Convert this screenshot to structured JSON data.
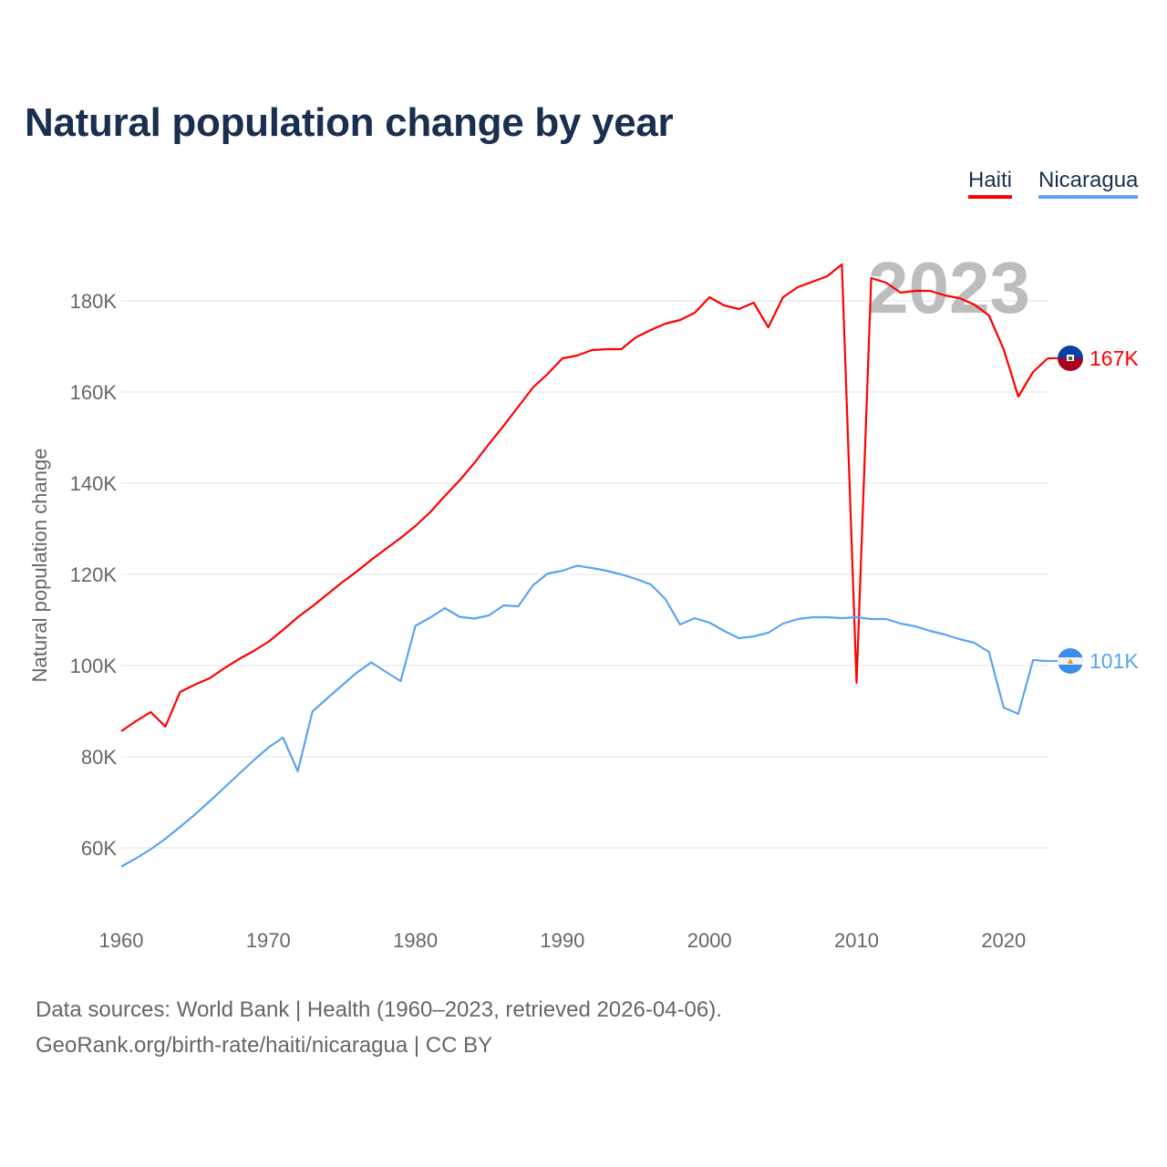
{
  "chart_data": {
    "type": "line",
    "title": "Natural population change by year",
    "xlabel": "",
    "ylabel": "Natural population change",
    "xlim": [
      1960,
      2023
    ],
    "ylim": [
      50000,
      192000
    ],
    "x_ticks": [
      1960,
      1970,
      1980,
      1990,
      2000,
      2010,
      2020
    ],
    "x_tick_labels": [
      "1960",
      "1970",
      "1980",
      "1990",
      "2000",
      "2010",
      "2020"
    ],
    "y_ticks": [
      60000,
      80000,
      100000,
      120000,
      140000,
      160000,
      180000
    ],
    "y_tick_labels": [
      "60K",
      "80K",
      "100K",
      "120K",
      "140K",
      "160K",
      "180K"
    ],
    "grid": true,
    "legend_position": "top-right",
    "watermark_year": "2023",
    "x": [
      1960,
      1961,
      1962,
      1963,
      1964,
      1965,
      1966,
      1967,
      1968,
      1969,
      1970,
      1971,
      1972,
      1973,
      1974,
      1975,
      1976,
      1977,
      1978,
      1979,
      1980,
      1981,
      1982,
      1983,
      1984,
      1985,
      1986,
      1987,
      1988,
      1989,
      1990,
      1991,
      1992,
      1993,
      1994,
      1995,
      1996,
      1997,
      1998,
      1999,
      2000,
      2001,
      2002,
      2003,
      2004,
      2005,
      2006,
      2007,
      2008,
      2009,
      2010,
      2011,
      2012,
      2013,
      2014,
      2015,
      2016,
      2017,
      2018,
      2019,
      2020,
      2021,
      2022,
      2023
    ],
    "series": [
      {
        "name": "Haiti",
        "color": "#ff0000",
        "end_label": "167K",
        "flag": "haiti-flag",
        "values": [
          85600,
          87800,
          89800,
          86600,
          94200,
          95800,
          97200,
          99400,
          101400,
          103200,
          105200,
          107800,
          110600,
          113000,
          115600,
          118200,
          120600,
          123200,
          125600,
          128000,
          130600,
          133600,
          137200,
          140600,
          144400,
          148600,
          152600,
          156800,
          161000,
          164000,
          167400,
          168000,
          169200,
          169400,
          169400,
          172000,
          173600,
          175000,
          175800,
          177400,
          180800,
          179000,
          178200,
          179600,
          174200,
          180800,
          183000,
          184200,
          185400,
          188000,
          96200,
          185000,
          184000,
          181800,
          182200,
          182200,
          181200,
          180600,
          179200,
          176800,
          169400,
          159000,
          164400,
          167400
        ]
      },
      {
        "name": "Nicaragua",
        "color": "#5aa5ee",
        "end_label": "101K",
        "flag": "nicaragua-flag",
        "values": [
          55900,
          57700,
          59700,
          62000,
          64600,
          67300,
          70200,
          73200,
          76200,
          79200,
          82000,
          84200,
          76800,
          89900,
          92800,
          95600,
          98400,
          100700,
          98600,
          96600,
          108700,
          110500,
          112600,
          110700,
          110300,
          111000,
          113200,
          113000,
          117600,
          120200,
          120800,
          121900,
          121400,
          120800,
          120000,
          119000,
          117800,
          114600,
          109000,
          110400,
          109400,
          107600,
          106000,
          106400,
          107200,
          109200,
          110200,
          110600,
          110600,
          110400,
          110600,
          110200,
          110200,
          109200,
          108600,
          107600,
          106800,
          105800,
          105000,
          103000,
          90800,
          89400,
          101200,
          101000
        ]
      }
    ]
  },
  "source": {
    "line1": "Data sources: World Bank | Health (1960–2023, retrieved 2026-04-06).",
    "line2": "GeoRank.org/birth-rate/haiti/nicaragua | CC BY"
  }
}
